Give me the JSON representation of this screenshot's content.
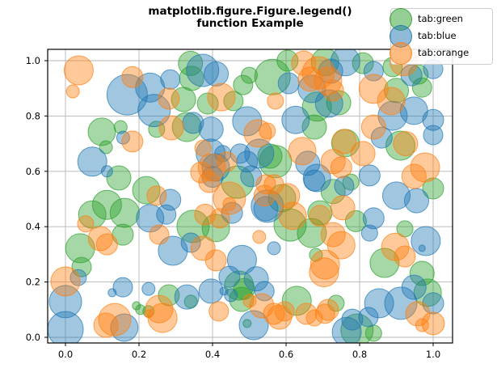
{
  "figure": {
    "background": "#ffffff",
    "frame_color": "#000000"
  },
  "chart_data": {
    "type": "scatter",
    "title": "matplotlib.figure.Figure.legend() function Example",
    "title_lines": [
      "matplotlib.figure.Figure.legend()",
      "function Example"
    ],
    "xlabel": "",
    "ylabel": "",
    "xlim": [
      -0.05,
      1.05
    ],
    "ylim": [
      -0.02,
      1.05
    ],
    "grid": true,
    "grid_color": "#b5b5b5",
    "tick_color": "#000000",
    "marker_alpha": 0.42,
    "xticks": {
      "values": [
        0.0,
        0.2,
        0.4,
        0.6,
        0.8,
        1.0
      ],
      "labels": [
        "0.0",
        "0.2",
        "0.4",
        "0.6",
        "0.8",
        "1.0"
      ]
    },
    "yticks": {
      "values": [
        0.0,
        0.2,
        0.4,
        0.6,
        0.8,
        1.0
      ],
      "labels": [
        "0.0",
        "0.2",
        "0.4",
        "0.6",
        "0.8",
        "1.0"
      ]
    },
    "legend": {
      "position": "upper-right",
      "items": [
        {
          "label": "tab:green",
          "color": "#2ca02c"
        },
        {
          "label": "tab:blue",
          "color": "#1f77b4"
        },
        {
          "label": "tab:orange",
          "color": "#ff7f0e"
        }
      ]
    },
    "series": [
      {
        "name": "tab:green",
        "color": "#2ca02c",
        "points": [
          [
            0.34,
            0.99,
            15
          ],
          [
            0.343,
            0.936,
            15
          ],
          [
            0.321,
            0.86,
            15
          ],
          [
            0.387,
            0.845,
            13
          ],
          [
            0.457,
            0.854,
            12
          ],
          [
            0.483,
            0.912,
            12
          ],
          [
            0.5,
            0.947,
            10
          ],
          [
            0.563,
            0.941,
            22
          ],
          [
            0.604,
            1.0,
            13
          ],
          [
            0.706,
            0.995,
            17
          ],
          [
            0.809,
            0.991,
            13
          ],
          [
            0.89,
            0.977,
            12
          ],
          [
            0.96,
            0.95,
            12
          ],
          [
            0.9,
            0.892,
            15
          ],
          [
            0.97,
            0.903,
            12
          ],
          [
            0.684,
            0.834,
            18
          ],
          [
            0.743,
            0.848,
            15
          ],
          [
            0.677,
            0.76,
            15
          ],
          [
            0.911,
            0.693,
            18
          ],
          [
            0.571,
            0.635,
            20
          ],
          [
            0.761,
            0.702,
            17
          ],
          [
            0.728,
            0.527,
            15
          ],
          [
            1.0,
            0.538,
            13
          ],
          [
            0.099,
            0.743,
            17
          ],
          [
            0.15,
            0.76,
            8
          ],
          [
            0.248,
            0.752,
            10
          ],
          [
            0.11,
            0.687,
            8
          ],
          [
            0.33,
            0.76,
            18
          ],
          [
            0.145,
            0.576,
            15
          ],
          [
            0.22,
            0.532,
            17
          ],
          [
            0.113,
            0.479,
            18
          ],
          [
            0.073,
            0.444,
            17
          ],
          [
            0.161,
            0.45,
            18
          ],
          [
            0.347,
            0.401,
            20
          ],
          [
            0.409,
            0.395,
            17
          ],
          [
            0.156,
            0.371,
            13
          ],
          [
            0.04,
            0.322,
            18
          ],
          [
            0.468,
            0.561,
            20
          ],
          [
            0.556,
            0.655,
            15
          ],
          [
            0.589,
            0.503,
            17
          ],
          [
            0.776,
            0.561,
            10
          ],
          [
            0.79,
            0.42,
            13
          ],
          [
            0.611,
            0.406,
            20
          ],
          [
            0.67,
            0.377,
            18
          ],
          [
            0.692,
            0.45,
            15
          ],
          [
            0.923,
            0.392,
            10
          ],
          [
            0.868,
            0.269,
            18
          ],
          [
            0.97,
            0.231,
            15
          ],
          [
            0.985,
            0.161,
            17
          ],
          [
            0.629,
            0.132,
            18
          ],
          [
            0.736,
            0.123,
            10
          ],
          [
            0.793,
            0.026,
            20
          ],
          [
            0.838,
            0.015,
            10
          ],
          [
            0.472,
            0.187,
            18
          ],
          [
            0.479,
            0.137,
            15
          ],
          [
            0.281,
            0.152,
            13
          ],
          [
            0.341,
            0.129,
            8
          ],
          [
            0.193,
            0.114,
            5
          ],
          [
            0.204,
            0.1,
            6
          ],
          [
            0.226,
            0.094,
            7
          ],
          [
            0.494,
            0.05,
            5
          ],
          [
            0.681,
            0.298,
            8
          ],
          [
            0.486,
            0.175,
            13
          ],
          [
            0.044,
            0.254,
            12
          ]
        ]
      },
      {
        "name": "tab:blue",
        "color": "#1f77b4",
        "points": [
          [
            0.168,
            0.877,
            25
          ],
          [
            0.23,
            0.903,
            18
          ],
          [
            0.285,
            0.932,
            12
          ],
          [
            0.373,
            0.965,
            20
          ],
          [
            0.41,
            0.952,
            15
          ],
          [
            0.241,
            0.82,
            20
          ],
          [
            0.494,
            0.781,
            18
          ],
          [
            0.607,
            0.918,
            13
          ],
          [
            0.761,
            0.998,
            18
          ],
          [
            0.721,
            0.962,
            15
          ],
          [
            0.67,
            0.898,
            17
          ],
          [
            0.717,
            0.845,
            17
          ],
          [
            0.626,
            0.786,
            17
          ],
          [
            0.838,
            0.962,
            12
          ],
          [
            0.941,
            0.947,
            13
          ],
          [
            1.0,
            0.97,
            12
          ],
          [
            0.948,
            0.819,
            17
          ],
          [
            0.89,
            0.801,
            18
          ],
          [
            1.0,
            0.786,
            13
          ],
          [
            0.86,
            0.722,
            13
          ],
          [
            1.0,
            0.731,
            12
          ],
          [
            0.527,
            0.664,
            18
          ],
          [
            0.659,
            0.629,
            15
          ],
          [
            0.677,
            0.567,
            13
          ],
          [
            0.827,
            0.585,
            13
          ],
          [
            0.9,
            0.512,
            17
          ],
          [
            0.955,
            0.494,
            15
          ],
          [
            0.073,
            0.635,
            18
          ],
          [
            0.113,
            0.6,
            7
          ],
          [
            0.157,
            0.722,
            8
          ],
          [
            0.396,
            0.752,
            15
          ],
          [
            0.347,
            0.775,
            13
          ],
          [
            0.395,
            0.664,
            18
          ],
          [
            0.409,
            0.614,
            17
          ],
          [
            0.505,
            0.582,
            13
          ],
          [
            0.285,
            0.497,
            13
          ],
          [
            0.4,
            0.58,
            13
          ],
          [
            0.494,
            0.635,
            13
          ],
          [
            0.475,
            0.664,
            12
          ],
          [
            0.428,
            0.664,
            10
          ],
          [
            0.545,
            0.465,
            15
          ],
          [
            0.758,
            0.547,
            12
          ],
          [
            0.684,
            0.576,
            17
          ],
          [
            0.23,
            0.43,
            17
          ],
          [
            0.274,
            0.444,
            12
          ],
          [
            0.453,
            0.45,
            13
          ],
          [
            0.292,
            0.313,
            18
          ],
          [
            0.341,
            0.342,
            12
          ],
          [
            0.48,
            0.28,
            18
          ],
          [
            0.035,
            0.216,
            10
          ],
          [
            0.156,
            0.181,
            12
          ],
          [
            0.127,
            0.161,
            5
          ],
          [
            0.226,
            0.175,
            8
          ],
          [
            0.549,
            0.474,
            20
          ],
          [
            0.838,
            0.43,
            13
          ],
          [
            0.827,
            0.377,
            10
          ],
          [
            0.98,
            0.348,
            18
          ],
          [
            0.97,
            0.322,
            4
          ],
          [
            0.567,
            0.322,
            8
          ],
          [
            0.519,
            0.211,
            15
          ],
          [
            0.541,
            0.167,
            12
          ],
          [
            0.853,
            0.123,
            18
          ],
          [
            0.912,
            0.123,
            20
          ],
          [
            0.948,
            0.181,
            15
          ],
          [
            0.824,
            0.073,
            12
          ],
          [
            0.78,
            0.064,
            13
          ],
          [
            1.0,
            0.123,
            13
          ],
          [
            0.33,
            0.146,
            15
          ],
          [
            0.16,
            0.035,
            17
          ],
          [
            0.0,
            0.129,
            20
          ],
          [
            0.0,
            0.029,
            22
          ],
          [
            0.765,
            0.02,
            18
          ],
          [
            0.512,
            0.044,
            18
          ],
          [
            0.45,
            0.152,
            8
          ],
          [
            0.431,
            0.167,
            5
          ],
          [
            0.396,
            0.167,
            15
          ],
          [
            0.446,
            0.219,
            13
          ]
        ]
      },
      {
        "name": "tab:orange",
        "color": "#ff7f0e",
        "points": [
          [
            0.036,
            0.965,
            18
          ],
          [
            0.02,
            0.889,
            8
          ],
          [
            0.182,
            0.941,
            13
          ],
          [
            0.281,
            0.863,
            13
          ],
          [
            0.424,
            0.868,
            17
          ],
          [
            0.288,
            0.757,
            15
          ],
          [
            0.182,
            0.708,
            13
          ],
          [
            0.374,
            0.684,
            10
          ],
          [
            0.439,
            0.635,
            12
          ],
          [
            0.446,
            0.503,
            20
          ],
          [
            0.248,
            0.512,
            12
          ],
          [
            0.648,
            0.991,
            15
          ],
          [
            0.688,
            0.956,
            20
          ],
          [
            0.714,
            0.927,
            17
          ],
          [
            0.666,
            0.933,
            15
          ],
          [
            0.728,
            0.892,
            13
          ],
          [
            0.92,
            0.995,
            17
          ],
          [
            0.838,
            0.898,
            18
          ],
          [
            0.886,
            0.854,
            17
          ],
          [
            0.571,
            0.854,
            10
          ],
          [
            0.523,
            0.737,
            17
          ],
          [
            0.549,
            0.746,
            10
          ],
          [
            0.838,
            0.76,
            15
          ],
          [
            0.809,
            0.664,
            15
          ],
          [
            0.758,
            0.708,
            15
          ],
          [
            0.728,
            0.635,
            15
          ],
          [
            0.75,
            0.614,
            13
          ],
          [
            0.978,
            0.614,
            18
          ],
          [
            0.948,
            0.582,
            15
          ],
          [
            0.925,
            0.7,
            15
          ],
          [
            0.604,
            0.512,
            15
          ],
          [
            0.567,
            0.553,
            12
          ],
          [
            0.398,
            0.614,
            17
          ],
          [
            0.391,
            0.561,
            13
          ],
          [
            0.545,
            0.553,
            12
          ],
          [
            0.541,
            0.512,
            13
          ],
          [
            0.446,
            0.482,
            8
          ],
          [
            0.644,
            0.673,
            17
          ],
          [
            0.754,
            0.468,
            15
          ],
          [
            0.692,
            0.439,
            13
          ],
          [
            0.369,
            0.596,
            13
          ],
          [
            0.055,
            0.41,
            10
          ],
          [
            0.095,
            0.357,
            15
          ],
          [
            0.113,
            0.336,
            13
          ],
          [
            0.38,
            0.444,
            13
          ],
          [
            0.42,
            0.43,
            12
          ],
          [
            0.255,
            0.371,
            12
          ],
          [
            0.374,
            0.322,
            15
          ],
          [
            0.409,
            0.278,
            13
          ],
          [
            0.0,
            0.202,
            18
          ],
          [
            0.618,
            0.439,
            17
          ],
          [
            0.728,
            0.371,
            15
          ],
          [
            0.75,
            0.333,
            17
          ],
          [
            0.706,
            0.263,
            18
          ],
          [
            0.897,
            0.327,
            17
          ],
          [
            0.923,
            0.292,
            13
          ],
          [
            0.527,
            0.363,
            8
          ],
          [
            0.958,
            0.085,
            15
          ],
          [
            0.97,
            0.044,
            8
          ],
          [
            0.534,
            0.114,
            15
          ],
          [
            0.567,
            0.085,
            13
          ],
          [
            0.596,
            0.094,
            12
          ],
          [
            0.706,
            0.085,
            12
          ],
          [
            0.677,
            0.07,
            10
          ],
          [
            0.134,
            0.064,
            20
          ],
          [
            0.11,
            0.044,
            15
          ],
          [
            0.264,
            0.07,
            18
          ],
          [
            0.255,
            0.102,
            17
          ],
          [
            0.226,
            0.085,
            5
          ],
          [
            0.501,
            0.132,
            8
          ],
          [
            0.417,
            0.094,
            12
          ],
          [
            0.582,
            0.073,
            15
          ],
          [
            0.655,
            0.085,
            13
          ],
          [
            0.714,
            0.099,
            13
          ],
          [
            0.703,
            0.235,
            18
          ],
          [
            1.0,
            0.05,
            14
          ]
        ]
      }
    ]
  }
}
